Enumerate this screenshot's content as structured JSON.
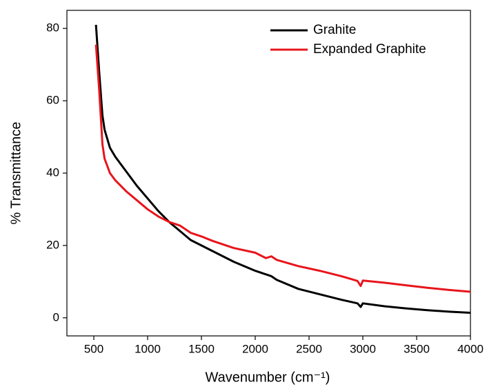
{
  "chart_data": {
    "type": "line",
    "xlabel": "Wavenumber (cm⁻¹)",
    "ylabel": "% Transmittance",
    "x": [
      520,
      550,
      580,
      600,
      650,
      700,
      800,
      900,
      1000,
      1100,
      1200,
      1300,
      1400,
      1500,
      1600,
      1800,
      2000,
      2100,
      2150,
      2200,
      2400,
      2600,
      2800,
      2950,
      2980,
      3000,
      3200,
      3400,
      3600,
      3800,
      4000
    ],
    "series": [
      {
        "name": "Grahite",
        "color": "#000000",
        "values": [
          81,
          68,
          56,
          52,
          47,
          44.5,
          40.5,
          36.5,
          33,
          29.5,
          26.5,
          24,
          21.5,
          20,
          18.5,
          15.5,
          13,
          12,
          11.5,
          10.5,
          8,
          6.5,
          5,
          4,
          3,
          4,
          3.2,
          2.6,
          2.1,
          1.7,
          1.4
        ]
      },
      {
        "name": "Expanded Graphite",
        "color": "#e8141b",
        "values": [
          75.5,
          63,
          48,
          44,
          40,
          38,
          35,
          32.5,
          30,
          28,
          26.5,
          25.5,
          23.5,
          22.5,
          21.3,
          19.3,
          18,
          16.5,
          17,
          16,
          14.3,
          13,
          11.5,
          10.2,
          8.8,
          10.3,
          9.7,
          9,
          8.3,
          7.7,
          7.2
        ]
      }
    ],
    "xlim": [
      250,
      4000
    ],
    "xticks": [
      500,
      1000,
      1500,
      2000,
      2500,
      3000,
      3500,
      4000
    ],
    "ylim": [
      -5,
      85
    ],
    "yticks": [
      0,
      20,
      40,
      60,
      80
    ],
    "grid": false,
    "legend": "upper right"
  }
}
